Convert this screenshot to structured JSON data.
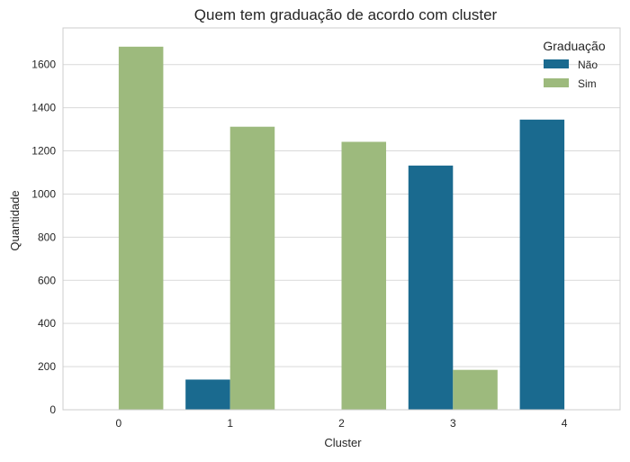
{
  "chart_data": {
    "type": "bar",
    "title": "Quem tem graduação de acordo com cluster",
    "xlabel": "Cluster",
    "ylabel": "Quantidade",
    "categories": [
      "0",
      "1",
      "2",
      "3",
      "4"
    ],
    "ylim": [
      0,
      1770
    ],
    "yticks": [
      0,
      200,
      400,
      600,
      800,
      1000,
      1200,
      1400,
      1600
    ],
    "grid": true,
    "legend": {
      "title": "Graduação",
      "placement": "top-right"
    },
    "series": [
      {
        "name": "Não",
        "color": "#1a6a8f",
        "values": [
          0,
          140,
          0,
          1132,
          1345
        ]
      },
      {
        "name": "Sim",
        "color": "#9dba7d",
        "values": [
          1683,
          1312,
          1242,
          185,
          0
        ]
      }
    ]
  }
}
